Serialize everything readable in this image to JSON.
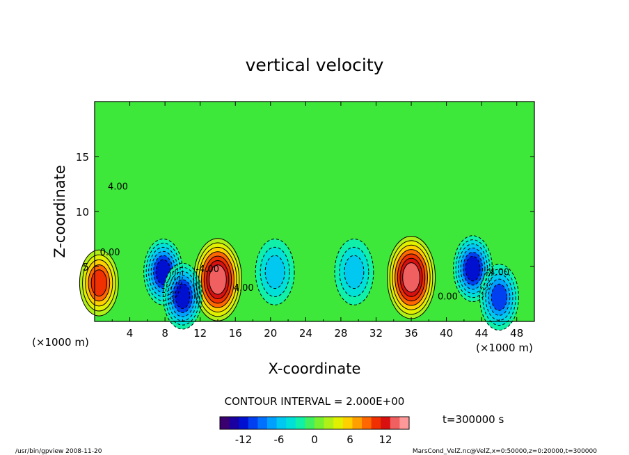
{
  "chart_data": {
    "type": "heatmap",
    "title": "vertical velocity",
    "xlabel": "X-coordinate",
    "ylabel": "Z-coordinate",
    "x_unit_label": "(×1000 m)",
    "y_unit_label": "(×1000 m)",
    "xlim": [
      0,
      50
    ],
    "ylim": [
      0,
      20
    ],
    "x_ticks": [
      4,
      8,
      12,
      16,
      20,
      24,
      28,
      32,
      36,
      40,
      44,
      48
    ],
    "y_ticks": [
      5,
      10,
      15
    ],
    "contour_interval_label": "CONTOUR INTERVAL = 2.000E+00",
    "contour_interval": 2.0,
    "time_label": "t=300000 s",
    "colorbar": {
      "min": -16,
      "max": 16,
      "ticks": [
        -12,
        -6,
        0,
        6,
        12
      ],
      "colors": [
        "#3a0070",
        "#1a00a0",
        "#0010d0",
        "#0040f0",
        "#0070ff",
        "#00a0ff",
        "#00c8f0",
        "#00e0d8",
        "#10f0a8",
        "#40f060",
        "#78f030",
        "#b0f018",
        "#e0f000",
        "#ffd000",
        "#ffa000",
        "#ff6800",
        "#f03000",
        "#d81010",
        "#f06060",
        "#ff9898"
      ]
    },
    "contour_labels": [
      "4.00",
      "0.00",
      "-4.00"
    ],
    "features": [
      {
        "kind": "updraft",
        "x": 14,
        "z": 3.8,
        "peak": 14
      },
      {
        "kind": "updraft",
        "x": 36,
        "z": 4.0,
        "peak": 14
      },
      {
        "kind": "updraft",
        "x": 0.5,
        "z": 3.5,
        "peak": 9
      },
      {
        "kind": "downdraft",
        "x": 7.8,
        "z": 4.5,
        "peak": -12
      },
      {
        "kind": "downdraft",
        "x": 10,
        "z": 2.3,
        "peak": -12
      },
      {
        "kind": "downdraft",
        "x": 43,
        "z": 4.8,
        "peak": -11
      },
      {
        "kind": "downdraft",
        "x": 46,
        "z": 2.2,
        "peak": -10
      },
      {
        "kind": "downdraft",
        "x": 20.5,
        "z": 4.5,
        "peak": -5
      },
      {
        "kind": "downdraft",
        "x": 29.5,
        "z": 4.5,
        "peak": -5
      }
    ]
  },
  "footer": {
    "left": "/usr/bin/gpview   2008-11-20",
    "right": "MarsCond_VelZ.nc@VelZ,x=0:50000,z=0:20000,t=300000"
  }
}
